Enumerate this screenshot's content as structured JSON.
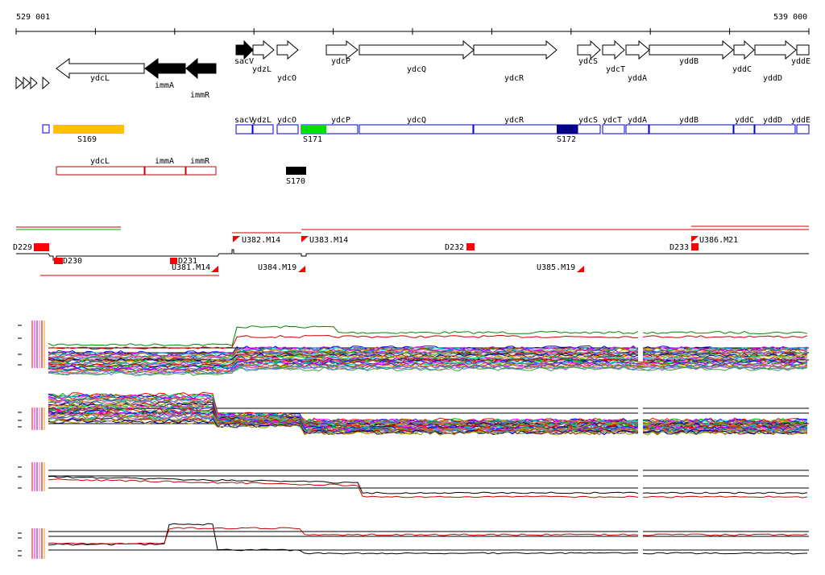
{
  "ruler": {
    "start": "529 001",
    "end": "539 000"
  },
  "genes": [
    {
      "name": "sacV",
      "dir": "right",
      "fill": "black"
    },
    {
      "name": "ydzL",
      "dir": "right",
      "fill": "white"
    },
    {
      "name": "ydcO",
      "dir": "right",
      "fill": "white"
    },
    {
      "name": "ydcP",
      "dir": "right",
      "fill": "white"
    },
    {
      "name": "ydcQ",
      "dir": "right",
      "fill": "white"
    },
    {
      "name": "ydcR",
      "dir": "right",
      "fill": "white"
    },
    {
      "name": "ydcS",
      "dir": "right",
      "fill": "white"
    },
    {
      "name": "ydcT",
      "dir": "right",
      "fill": "white"
    },
    {
      "name": "yddA",
      "dir": "right",
      "fill": "white"
    },
    {
      "name": "yddB",
      "dir": "right",
      "fill": "white"
    },
    {
      "name": "yddC",
      "dir": "right",
      "fill": "white"
    },
    {
      "name": "yddD",
      "dir": "right",
      "fill": "white"
    },
    {
      "name": "yddE",
      "dir": "right",
      "fill": "white"
    },
    {
      "name": "ydcL",
      "dir": "left",
      "fill": "white"
    },
    {
      "name": "immA",
      "dir": "left",
      "fill": "black"
    },
    {
      "name": "immR",
      "dir": "left",
      "fill": "black"
    }
  ],
  "operon_labels": [
    "sacV",
    "ydzL",
    "ydcO",
    "ydcP",
    "ydcQ",
    "ydcR",
    "ydcS",
    "ydcT",
    "yddA",
    "yddB",
    "yddC",
    "yddD",
    "yddE"
  ],
  "reverse_labels": [
    "ydcL",
    "immA",
    "immR"
  ],
  "segments": [
    {
      "name": "S169",
      "color": "#ffc000"
    },
    {
      "name": "S171",
      "color": "#00e000"
    },
    {
      "name": "S172",
      "color": "#00008b"
    },
    {
      "name": "S170",
      "color": "#000000"
    }
  ],
  "tu_labels": [
    "D229",
    "D230",
    "D231",
    "D232",
    "D233",
    "U381.M14",
    "U382.M14",
    "U383.M14",
    "U384.M19",
    "U385.M19",
    "U386.M21"
  ],
  "colors": {
    "forward_box": "#0000cc",
    "reverse_box": "#cc0000",
    "marker": "#ff0000",
    "series_a": "#000000",
    "series_b": "#ff0000"
  }
}
